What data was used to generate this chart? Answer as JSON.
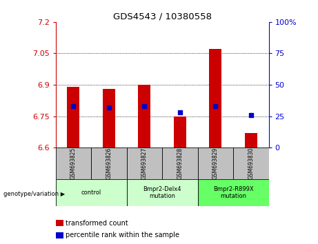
{
  "title": "GDS4543 / 10380558",
  "samples": [
    "GSM693825",
    "GSM693826",
    "GSM693827",
    "GSM693828",
    "GSM693829",
    "GSM693830"
  ],
  "transformed_count": [
    6.89,
    6.88,
    6.9,
    6.75,
    7.07,
    6.67
  ],
  "percentile_rank": [
    33,
    32,
    33,
    28,
    33,
    26
  ],
  "ylim_left": [
    6.6,
    7.2
  ],
  "ylim_right": [
    0,
    100
  ],
  "yticks_left": [
    6.6,
    6.75,
    6.9,
    7.05,
    7.2
  ],
  "yticks_right": [
    0,
    25,
    50,
    75,
    100
  ],
  "bar_color": "#cc0000",
  "dot_color": "#0000cc",
  "bar_bottom": 6.6,
  "groups": [
    {
      "label": "control",
      "span": [
        0,
        1
      ],
      "color": "#ccffcc"
    },
    {
      "label": "Bmpr2-Delx4\nmutation",
      "span": [
        2,
        3
      ],
      "color": "#ccffcc"
    },
    {
      "label": "Bmpr2-R899X\nmutation",
      "span": [
        4,
        5
      ],
      "color": "#66ff66"
    }
  ],
  "xlabel_group": "genotype/variation",
  "legend_red": "transformed count",
  "legend_blue": "percentile rank within the sample",
  "tick_color_left": "#cc0000",
  "tick_color_right": "#0000cc",
  "bar_width": 0.35,
  "dot_size": 25,
  "xticklabel_bg": "#c0c0c0",
  "right_axis_label": "100%"
}
